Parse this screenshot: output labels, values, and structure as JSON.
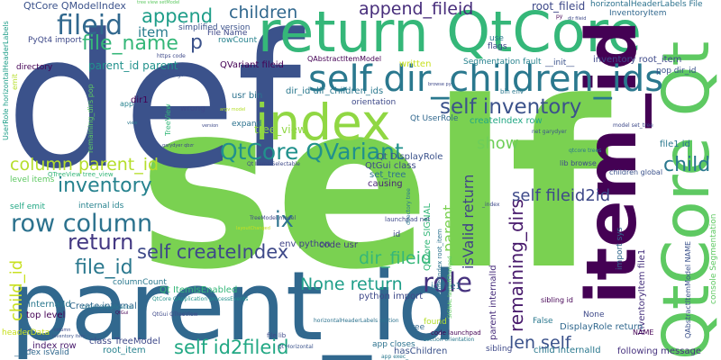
{
  "words": [
    {
      "text": "self",
      "color": "#7ad151"
    },
    {
      "text": "def",
      "color": "#3b528b"
    },
    {
      "text": "parent_id",
      "color": "#31688e"
    },
    {
      "text": "return QtCore",
      "color": "#35b779"
    },
    {
      "text": "QtCore Qt",
      "color": "#5ec962"
    },
    {
      "text": "item_id",
      "color": "#440154"
    },
    {
      "text": "index",
      "color": "#90d743"
    },
    {
      "text": "self dir_children_ids",
      "color": "#2a788e"
    },
    {
      "text": "fileid",
      "color": "#31688e"
    },
    {
      "text": "file_name",
      "color": "#35b779"
    },
    {
      "text": "self inventory",
      "color": "#3b528b"
    },
    {
      "text": "QtCore QVariant",
      "color": "#21918c"
    },
    {
      "text": "row column",
      "color": "#2c728e"
    },
    {
      "text": "column parent_id",
      "color": "#b5de2b"
    },
    {
      "text": "self createIndex",
      "color": "#3e4989"
    },
    {
      "text": "return",
      "color": "#443983"
    },
    {
      "text": "file_id",
      "color": "#2a788e"
    },
    {
      "text": "inventory",
      "color": "#26828e"
    },
    {
      "text": "self id2fileid",
      "color": "#22a884"
    },
    {
      "text": "role",
      "color": "#46327e"
    },
    {
      "text": "append",
      "color": "#1f9e89"
    },
    {
      "text": "children",
      "color": "#31688e"
    },
    {
      "text": "append_fileid",
      "color": "#472d7b"
    },
    {
      "text": "child_id",
      "color": "#c8e020"
    },
    {
      "text": "child",
      "color": "#2a788e"
    },
    {
      "text": "len self",
      "color": "#3b528b"
    },
    {
      "text": "remaining_dirs",
      "color": "#481a6c"
    },
    {
      "text": "dir_fileid",
      "color": "#35b779"
    },
    {
      "text": "None return",
      "color": "#1f9e89"
    },
    {
      "text": "self fileid2id",
      "color": "#3e4989"
    },
    {
      "text": "isValid return",
      "color": "#414487"
    },
    {
      "text": "show",
      "color": "#6ece58"
    },
    {
      "text": "parent",
      "color": "#7ad151"
    },
    {
      "text": "ix",
      "color": "#2c728e"
    },
    {
      "text": "item",
      "color": "#287c8e"
    },
    {
      "text": "p",
      "color": "#3b528b"
    },
    {
      "text": "root_fileid",
      "color": "#3e4989"
    },
    {
      "text": "tree_view",
      "color": "#90d743"
    },
    {
      "text": "QtCore QModelIndex",
      "color": "#3b528b"
    },
    {
      "text": "parent_id parent",
      "color": "#21918c"
    },
    {
      "text": "QVariant fileid",
      "color": "#440154"
    },
    {
      "text": "dir_id dir_children_ids",
      "color": "#2a788e"
    },
    {
      "text": "inventory root_item",
      "color": "#3e4989"
    },
    {
      "text": "InventoryItem file1",
      "color": "#46327e"
    },
    {
      "text": "QtCore SIGNAL",
      "color": "#35b779"
    },
    {
      "text": "createIndex row",
      "color": "#22a884"
    },
    {
      "text": "Qt DisplayRole",
      "color": "#3b528b"
    },
    {
      "text": "parent internalId",
      "color": "#472d7b"
    },
    {
      "text": "DisplayRole return",
      "color": "#31688e"
    },
    {
      "text": "child internalId",
      "color": "#2a788e"
    },
    {
      "text": "Qt ItemIsEnabled",
      "color": "#35b779"
    },
    {
      "text": "python import",
      "color": "#3e4989"
    },
    {
      "text": "code usr",
      "color": "#443983"
    },
    {
      "text": "env python",
      "color": "#414487"
    },
    {
      "text": "QtGui class",
      "color": "#3e4989"
    },
    {
      "text": "set_tree",
      "color": "#2c728e"
    },
    {
      "text": "causing",
      "color": "#482475"
    },
    {
      "text": "root_item",
      "color": "#26828e"
    },
    {
      "text": "class TreeModel",
      "color": "#3e4989"
    },
    {
      "text": "_index row",
      "color": "#481a6c"
    },
    {
      "text": "top level",
      "color": "#440154"
    },
    {
      "text": "internalId",
      "color": "#2a788e"
    },
    {
      "text": "Create internal",
      "color": "#31688e"
    },
    {
      "text": "sibling",
      "color": "#3e4989"
    },
    {
      "text": "following message",
      "color": "#46327e"
    },
    {
      "text": "hasChildren",
      "color": "#3b528b"
    },
    {
      "text": "id file1",
      "color": "#2c728e"
    },
    {
      "text": "file1 id",
      "color": "#2a788e"
    },
    {
      "text": "usr bin",
      "color": "#2c728e"
    },
    {
      "text": "dir1",
      "color": "#440154"
    },
    {
      "text": "wrong",
      "color": "#3e4989"
    },
    {
      "text": "expand",
      "color": "#2c728e"
    },
    {
      "text": "written",
      "color": "#c8e020"
    },
    {
      "text": "Segmentation fault",
      "color": "#26828e"
    },
    {
      "text": "simplified version",
      "color": "#3b528b"
    },
    {
      "text": "QAbstractItemModel",
      "color": "#440154"
    },
    {
      "text": "rowCount",
      "color": "#26828e"
    },
    {
      "text": "File Name",
      "color": "#3e4989"
    },
    {
      "text": "InventoryItem",
      "color": "#31688e"
    },
    {
      "text": "horizontalHeaderLabels File",
      "color": "#2c728e"
    },
    {
      "text": "__init__",
      "color": "#3b528b"
    },
    {
      "text": "pop dir_id",
      "color": "#3b528b"
    },
    {
      "text": "flags",
      "color": "#3e4989"
    },
    {
      "text": "use",
      "color": "#2a788e"
    },
    {
      "text": "PyQt4 import",
      "color": "#3e4989"
    },
    {
      "text": "directory",
      "color": "#440154"
    },
    {
      "text": "level items",
      "color": "#5ec962"
    },
    {
      "text": "self emit",
      "color": "#22a884"
    },
    {
      "text": "internal ids",
      "color": "#26828e"
    },
    {
      "text": "columnCount",
      "color": "#2a788e"
    },
    {
      "text": "orientation",
      "color": "#3e4989"
    },
    {
      "text": "Qt UserRole",
      "color": "#31688e"
    },
    {
      "text": "headerData",
      "color": "#c8e020"
    },
    {
      "text": "_index isValid",
      "color": "#31688e"
    },
    {
      "text": "None",
      "color": "#3e4989"
    },
    {
      "text": "False",
      "color": "#2a788e"
    },
    {
      "text": "import sys",
      "color": "#31688e"
    },
    {
      "text": "found",
      "color": "#b5de2b"
    },
    {
      "text": "tree",
      "color": "#31688e"
    },
    {
      "text": "app closes",
      "color": "#2c728e"
    },
    {
      "text": "id",
      "color": "#3e4989"
    },
    {
      "text": "console Segmentation",
      "color": "#5ec962"
    },
    {
      "text": "QAbstractItemModel NAME",
      "color": "#3b528b"
    },
    {
      "text": "lib browse",
      "color": "#3e4989"
    },
    {
      "text": "children global",
      "color": "#3b528b"
    },
    {
      "text": "NAME",
      "color": "#440154"
    },
    {
      "text": "sibling id",
      "color": "#440154"
    },
    {
      "text": "app",
      "color": "#26828e"
    },
    {
      "text": "TreeView",
      "color": "#35b779"
    },
    {
      "text": "UserRole horizontalHeaderLabels",
      "color": "#1f9e89"
    },
    {
      "text": "emit",
      "color": "#b5de2b"
    },
    {
      "text": "remaining_dirs pop",
      "color": "#5ec962"
    },
    {
      "text": "QTreeView tree_view",
      "color": "#35b779"
    },
    {
      "text": "file lib",
      "color": "#3e4989"
    },
    {
      "text": "launchpad net",
      "color": "#3e4989"
    },
    {
      "text": "code launchpad",
      "color": "#440154"
    },
    {
      "text": "section orientation",
      "color": "#2a788e"
    },
    {
      "text": "app exec_",
      "color": "#2a788e"
    },
    {
      "text": "horizontalHeaderLabels section",
      "color": "#2c728e"
    },
    {
      "text": "Qt Horizontal",
      "color": "#3b528b"
    },
    {
      "text": "QtGui QTreeView",
      "color": "#3e4989"
    },
    {
      "text": "QtGui QApplication",
      "color": "#2a788e"
    },
    {
      "text": "QtCore QApplication processEvents",
      "color": "#21918c"
    },
    {
      "text": "qtcore trees",
      "color": "#2a788e"
    },
    {
      "text": "net garydyer",
      "color": "#3b528b"
    },
    {
      "text": "model set_tree",
      "color": "#3e4989"
    },
    {
      "text": "TreeModel model",
      "color": "#3e4989"
    },
    {
      "text": "Qt ItemIsSelectable",
      "color": "#3e4989"
    },
    {
      "text": "ModelIndex root_item",
      "color": "#2c728e"
    },
    {
      "text": "SIGNAL layoutChanged",
      "color": "#5ec962"
    },
    {
      "text": "directory tree",
      "color": "#2a788e"
    },
    {
      "text": "https code",
      "color": "#3e4989"
    },
    {
      "text": "sys argv",
      "color": "#3b528b"
    },
    {
      "text": "tree view setModel",
      "color": "#5ec962"
    },
    {
      "text": "py",
      "color": "#440154"
    },
    {
      "text": "bin env",
      "color": "#2a788e"
    },
    {
      "text": "_index",
      "color": "#3e4989"
    },
    {
      "text": "garydyer qbzr",
      "color": "#3e4989"
    },
    {
      "text": "argv model",
      "color": "#b5de2b"
    },
    {
      "text": "dir fileid",
      "color": "#3e4989"
    },
    {
      "text": "browse py",
      "color": "#3e4989"
    },
    {
      "text": "inventory item",
      "color": "#3b528b"
    },
    {
      "text": "view",
      "color": "#2a788e"
    },
    {
      "text": "column",
      "color": "#3e4989"
    },
    {
      "text": "QtGui",
      "color": "#440154"
    },
    {
      "text": "version",
      "color": "#3e4989"
    },
    {
      "text": "layoutChanged",
      "color": "#c8e020"
    }
  ]
}
